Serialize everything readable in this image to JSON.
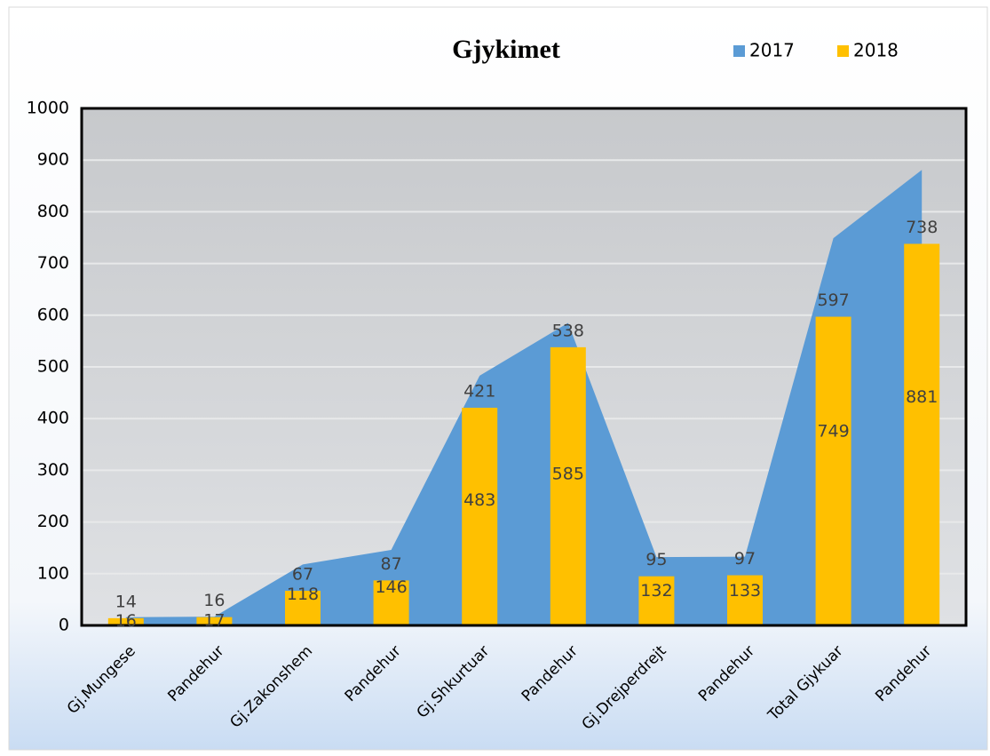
{
  "chart_data": {
    "type": "bar_area",
    "title": "Gjykimet",
    "categories": [
      "Gj.Mungese",
      "Pandehur",
      "Gj.Zakonshem",
      "Pandehur",
      "Gj.Shkurtuar",
      "Pandehur",
      "Gj.Drejperdrejt",
      "Pandehur",
      "Total Gjykuar",
      "Pandehur"
    ],
    "series": [
      {
        "name": "2017",
        "color": "#5b9bd5",
        "kind": "area",
        "values": [
          16,
          17,
          118,
          146,
          483,
          585,
          132,
          133,
          749,
          881
        ]
      },
      {
        "name": "2018",
        "color": "#ffc000",
        "kind": "bar",
        "values": [
          14,
          16,
          67,
          87,
          421,
          538,
          95,
          97,
          597,
          738
        ]
      }
    ],
    "ylim": [
      0,
      1000
    ],
    "yticks": [
      0,
      100,
      200,
      300,
      400,
      500,
      600,
      700,
      800,
      900,
      1000
    ],
    "grid": true,
    "legend": "top-right"
  }
}
